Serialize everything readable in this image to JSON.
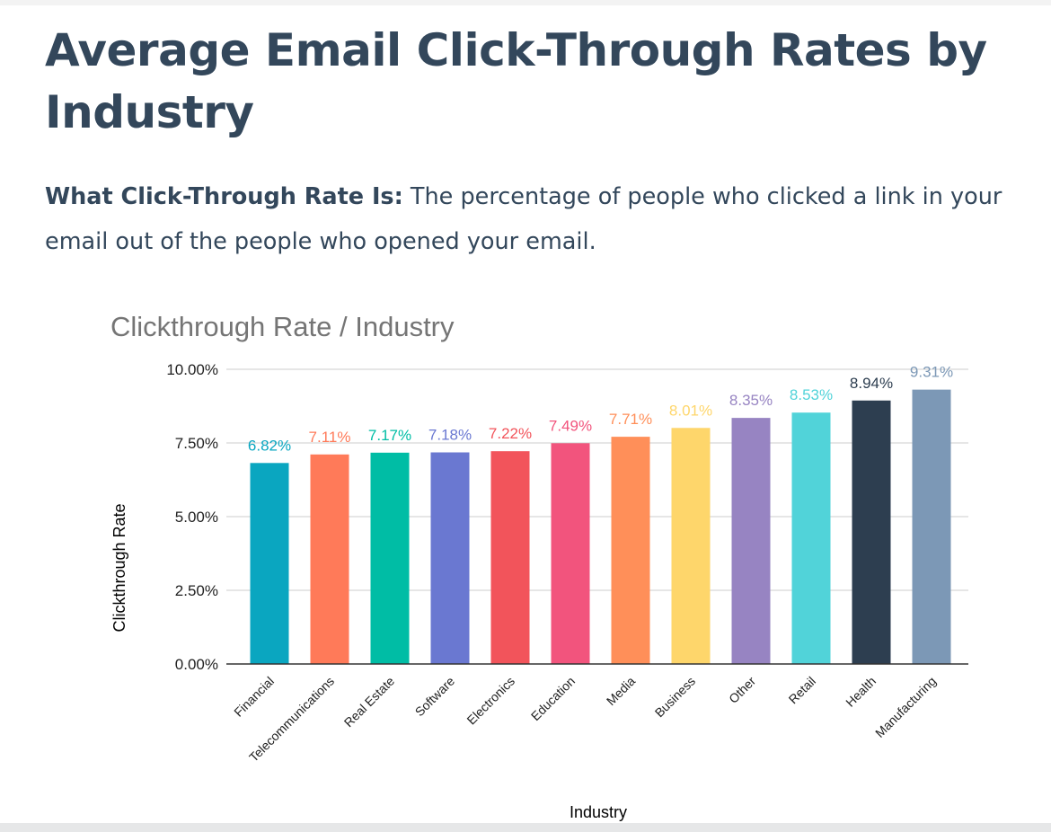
{
  "article": {
    "headline": "Average Email Click-Through Rates by Industry",
    "definition_lead": "What Click-Through Rate Is:",
    "definition_text": " The percentage of people who clicked a link in your email out of the people who opened your email."
  },
  "chart_data": {
    "type": "bar",
    "title": "Clickthrough Rate / Industry",
    "xlabel": "Industry",
    "ylabel": "Clickthrough Rate",
    "ylim": [
      0,
      10
    ],
    "yticks": [
      0,
      2.5,
      5,
      7.5,
      10
    ],
    "ytick_labels": [
      "0.00%",
      "2.50%",
      "5.00%",
      "7.50%",
      "10.00%"
    ],
    "grid": true,
    "categories": [
      "Financial",
      "Telecommunications",
      "Real Estate",
      "Software",
      "Electronics",
      "Education",
      "Media",
      "Business",
      "Other",
      "Retail",
      "Health",
      "Manufacturing"
    ],
    "values": [
      6.82,
      7.11,
      7.17,
      7.18,
      7.22,
      7.49,
      7.71,
      8.01,
      8.35,
      8.53,
      8.94,
      9.31
    ],
    "data_labels": [
      "6.82%",
      "7.11%",
      "7.17%",
      "7.18%",
      "7.22%",
      "7.49%",
      "7.71%",
      "8.01%",
      "8.35%",
      "8.53%",
      "8.94%",
      "9.31%"
    ],
    "colors": [
      "#0aa6c0",
      "#ff7a59",
      "#00bda5",
      "#6a78d1",
      "#f2545b",
      "#f2547d",
      "#ff8f59",
      "#fed66b",
      "#9784c2",
      "#51d3d9",
      "#2d3e50",
      "#7c98b6"
    ],
    "label_colors": [
      "#0aa6c0",
      "#ff7a59",
      "#00bda5",
      "#6a78d1",
      "#f2545b",
      "#f2547d",
      "#ff8f59",
      "#fed66b",
      "#9784c2",
      "#51d3d9",
      "#2d3e50",
      "#7c98b6"
    ]
  }
}
